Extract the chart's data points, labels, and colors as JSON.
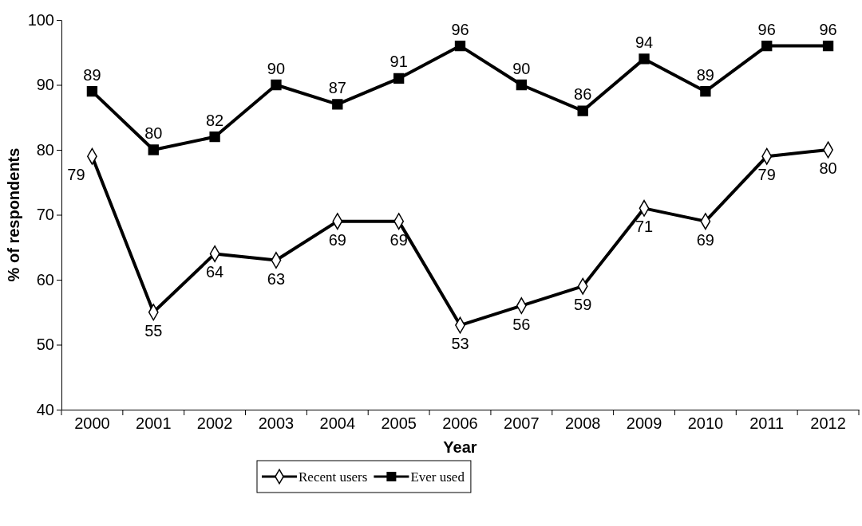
{
  "chart_data": {
    "type": "line",
    "xlabel": "Year",
    "ylabel": "% of respondents",
    "categories": [
      "2000",
      "2001",
      "2002",
      "2003",
      "2004",
      "2005",
      "2006",
      "2007",
      "2008",
      "2009",
      "2010",
      "2011",
      "2012"
    ],
    "series": [
      {
        "name": "Recent users",
        "color": "#000000",
        "marker": "diamond",
        "values": [
          79,
          55,
          64,
          63,
          69,
          69,
          53,
          56,
          59,
          71,
          69,
          79,
          80
        ]
      },
      {
        "name": "Ever used",
        "color": "#000000",
        "marker": "square",
        "values": [
          89,
          80,
          82,
          90,
          87,
          91,
          96,
          90,
          86,
          94,
          89,
          96,
          96
        ]
      }
    ],
    "ylim": [
      40,
      100
    ],
    "yticks": [
      40,
      50,
      60,
      70,
      80,
      90,
      100
    ],
    "grid": false,
    "legend": "bottom",
    "data_labels": true,
    "line_style": "solid"
  }
}
